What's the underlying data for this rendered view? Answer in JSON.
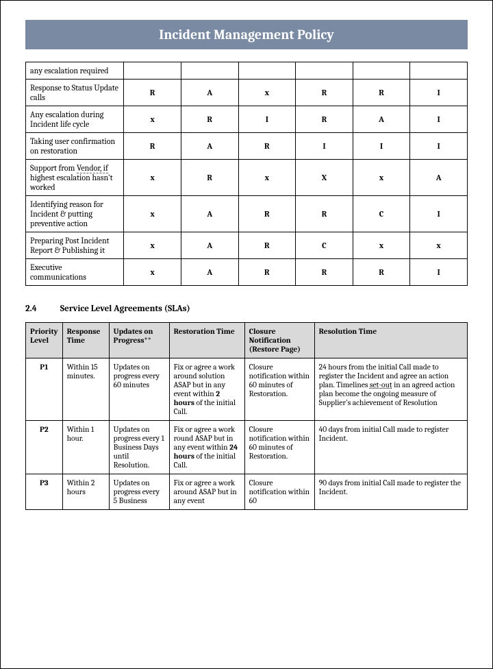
{
  "title": "Incident Management Policy",
  "raci": {
    "rows": [
      {
        "desc": "any escalation required",
        "cells": [
          "",
          "",
          "",
          "",
          "",
          ""
        ]
      },
      {
        "desc": "Response to Status Update calls",
        "cells": [
          "R",
          "A",
          "x",
          "R",
          "R",
          "I"
        ]
      },
      {
        "desc": "Any escalation during Incident life cycle",
        "cells": [
          "x",
          "R",
          "I",
          "R",
          "A",
          "I"
        ]
      },
      {
        "desc": "Taking user confirmation on restoration",
        "cells": [
          "R",
          "A",
          "R",
          "I",
          "I",
          "I"
        ]
      },
      {
        "desc_html": "Support from <span class='dot-under'>Vendor, if</span> highest escalation hasn't worked",
        "cells": [
          "x",
          "R",
          "x",
          "X",
          "x",
          "A"
        ]
      },
      {
        "desc": "Identifying reason for Incident & putting preventive action",
        "cells": [
          "x",
          "A",
          "R",
          "R",
          "C",
          "I"
        ]
      },
      {
        "desc": "Preparing Post Incident Report & Publishing it",
        "cells": [
          "x",
          "A",
          "R",
          "C",
          "x",
          "x"
        ]
      },
      {
        "desc": "Executive communications",
        "cells": [
          "x",
          "A",
          "R",
          "R",
          "R",
          "I"
        ]
      }
    ]
  },
  "section": {
    "number": "2.4",
    "title": "Service Level Agreements (SLAs)"
  },
  "sla": {
    "headers": [
      "Priority Level",
      "Response Time",
      "Updates on Progress**",
      "Restoration Time",
      "Closure Notification (Restore Page)",
      "Resolution Time"
    ],
    "col_widths": [
      "52px",
      "68px",
      "88px",
      "110px",
      "102px",
      "auto"
    ],
    "rows": [
      {
        "level": "P1",
        "response": "Within 15 minutes.",
        "updates": "Updates on progress every 60 minutes",
        "restoration_html": "Fix or agree a work around solution ASAP but in any event within <b>2 hours</b> of the initial Call.",
        "closure": "Closure notification within 60 minutes of Restoration.",
        "resolution_html": "24 hours from the initial Call made to register the Incident and agree an action plan. Timelines <span class='link-under'>set-out</span> in an agreed action plan become the ongoing measure of Supplier's achievement of Resolution"
      },
      {
        "level": "P2",
        "response": "Within 1 hour.",
        "updates": "Updates on progress every 1 Business Days until Resolution.",
        "restoration_html": "Fix or agree a work round ASAP but in any event within <b>24 hours</b> of the initial Call.",
        "closure": "Closure notification within 60 minutes of Restoration.",
        "resolution_html": "40 days from initial Call made to register Incident."
      },
      {
        "level": "P3",
        "response": "Within 2 hours",
        "updates": "Updates on progress every 5 Business",
        "restoration_html": "Fix or agree a work around ASAP but in any event",
        "closure": "Closure notification within 60",
        "resolution_html": "90 days from initial Call made to register the Incident."
      }
    ]
  }
}
